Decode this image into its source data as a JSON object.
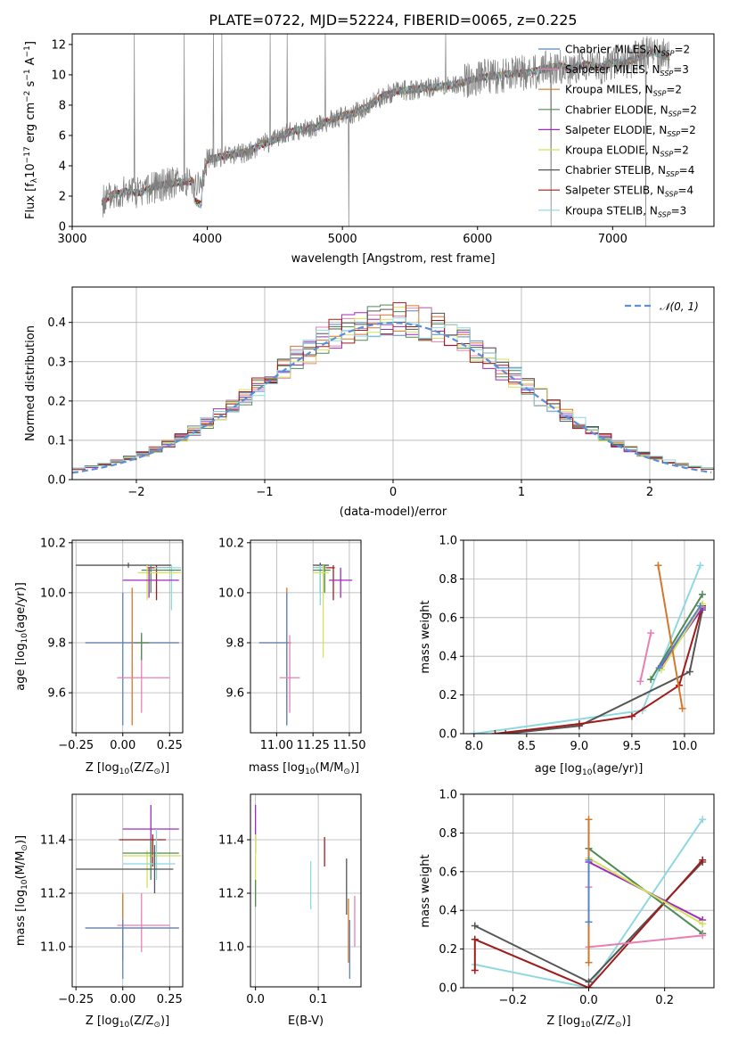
{
  "colors": {
    "chabrier_miles": "#5b84c4",
    "salpeter_miles": "#e87fb3",
    "kroupa_miles": "#d2772c",
    "chabrier_elodie": "#4f8a55",
    "salpeter_elodie": "#9b2dbd",
    "kroupa_elodie": "#d4e15a",
    "chabrier_stelib": "#555555",
    "salpeter_stelib": "#a01c1c",
    "kroupa_stelib": "#8fd8e0",
    "data": "#808080",
    "normal": "#5b8fd6"
  },
  "chart_data": [
    {
      "id": "spectrum",
      "type": "line",
      "title": "PLATE=0722, MJD=52224, FIBERID=0065, z=0.225",
      "xlabel": "wavelength [Angstrom, rest frame]",
      "ylabel_parts": [
        "Flux [f",
        "λ",
        "10",
        "−17",
        " erg cm",
        "−2",
        " s",
        "−1",
        " A",
        "−1",
        "]"
      ],
      "xlim": [
        3000,
        7750
      ],
      "ylim": [
        0,
        12.7
      ],
      "xticks": [
        3000,
        4000,
        5000,
        6000,
        7000
      ],
      "yticks": [
        0,
        2,
        4,
        6,
        8,
        10,
        12
      ],
      "data_x": [
        3220,
        3300,
        3400,
        3500,
        3600,
        3700,
        3800,
        3900,
        3950,
        4000,
        4100,
        4200,
        4300,
        4400,
        4500,
        4600,
        4700,
        4800,
        4900,
        5000,
        5100,
        5200,
        5300,
        5400,
        5500,
        5600,
        5700,
        5800,
        5900,
        6000,
        6100,
        6200,
        6300,
        6400,
        6500,
        6600,
        6700,
        6800,
        6900,
        7000,
        7100,
        7200,
        7300,
        7400
      ],
      "data_y": [
        1.6,
        2.1,
        2.3,
        2.2,
        2.6,
        2.8,
        2.9,
        3.0,
        2.6,
        4.4,
        4.6,
        4.8,
        4.9,
        5.4,
        5.7,
        6.2,
        6.4,
        6.5,
        7.0,
        7.3,
        7.5,
        8.0,
        8.6,
        8.9,
        9.0,
        9.1,
        9.2,
        9.3,
        9.5,
        9.8,
        9.9,
        10.0,
        10.1,
        10.2,
        10.4,
        10.6,
        10.4,
        10.7,
        10.5,
        10.8,
        10.8,
        11.2,
        11.5,
        11.2
      ],
      "legend": [
        {
          "prefix": "Chabrier MILES, N",
          "sub": "SSP",
          "suffix": "=2",
          "color_key": "chabrier_miles"
        },
        {
          "prefix": "Salpeter MILES, N",
          "sub": "SSP",
          "suffix": "=3",
          "color_key": "salpeter_miles"
        },
        {
          "prefix": "Kroupa MILES, N",
          "sub": "SSP",
          "suffix": "=2",
          "color_key": "kroupa_miles"
        },
        {
          "prefix": "Chabrier ELODIE, N",
          "sub": "SSP",
          "suffix": "=2",
          "color_key": "chabrier_elodie"
        },
        {
          "prefix": "Salpeter ELODIE, N",
          "sub": "SSP",
          "suffix": "=2",
          "color_key": "salpeter_elodie"
        },
        {
          "prefix": "Kroupa ELODIE, N",
          "sub": "SSP",
          "suffix": "=2",
          "color_key": "kroupa_elodie"
        },
        {
          "prefix": "Chabrier STELIB, N",
          "sub": "SSP",
          "suffix": "=4",
          "color_key": "chabrier_stelib"
        },
        {
          "prefix": "Salpeter STELIB, N",
          "sub": "SSP",
          "suffix": "=4",
          "color_key": "salpeter_stelib"
        },
        {
          "prefix": "Kroupa STELIB, N",
          "sub": "SSP",
          "suffix": "=3",
          "color_key": "kroupa_stelib"
        }
      ],
      "legend_position": "top-right"
    },
    {
      "id": "residuals",
      "type": "histogram",
      "xlabel": "(data-model)/error",
      "ylabel": "Normed distribution",
      "xlim": [
        -2.5,
        2.5
      ],
      "ylim": [
        0,
        0.49
      ],
      "xticks": [
        -2,
        -1,
        0,
        1,
        2
      ],
      "yticks": [
        0.0,
        0.1,
        0.2,
        0.3,
        0.4
      ],
      "grid": true,
      "normal_legend": "𝒩(0, 1)",
      "legend_position": "top-right"
    },
    {
      "id": "age-vs-z",
      "type": "errorbar",
      "xlabel_parts": [
        "Z [log",
        "10",
        "(Z/Z",
        "⊙",
        ")]"
      ],
      "ylabel_parts": [
        "age  [log",
        "10",
        "(age/yr)]"
      ],
      "xlim": [
        -0.27,
        0.32
      ],
      "ylim": [
        9.44,
        10.21
      ],
      "xticks": [
        -0.25,
        0.0,
        0.25
      ],
      "yticks": [
        9.6,
        9.8,
        10.0,
        10.2
      ],
      "grid": true,
      "points": [
        {
          "c": "chabrier_stelib",
          "x": 0.03,
          "y": 10.11,
          "xe": [
            -0.25,
            0.26
          ],
          "ye": [
            10.1,
            10.12
          ]
        },
        {
          "c": "salpeter_stelib",
          "x": 0.18,
          "y": 10.1,
          "xe": [
            0.13,
            0.26
          ],
          "ye": [
            9.97,
            10.11
          ]
        },
        {
          "c": "kroupa_stelib",
          "x": 0.26,
          "y": 10.1,
          "xe": [
            0.17,
            0.31
          ],
          "ye": [
            9.93,
            10.11
          ]
        },
        {
          "c": "chabrier_elodie",
          "x": 0.15,
          "y": 10.09,
          "xe": [
            0.1,
            0.31
          ],
          "ye": [
            10.0,
            10.11
          ]
        },
        {
          "c": "kroupa_elodie",
          "x": 0.13,
          "y": 10.08,
          "xe": [
            0.08,
            0.31
          ],
          "ye": [
            9.97,
            10.11
          ]
        },
        {
          "c": "salpeter_elodie",
          "x": 0.14,
          "y": 10.05,
          "xe": [
            0.0,
            0.3
          ],
          "ye": [
            9.98,
            10.1
          ]
        },
        {
          "c": "kroupa_miles",
          "x": 0.05,
          "y": 9.8,
          "xe": [
            -0.2,
            0.3
          ],
          "ye": [
            9.47,
            10.02
          ]
        },
        {
          "c": "chabrier_miles",
          "x": 0.0,
          "y": 9.8,
          "xe": [
            -0.2,
            0.3
          ],
          "ye": [
            9.47,
            10.0
          ]
        },
        {
          "c": "salpeter_miles",
          "x": 0.1,
          "y": 9.66,
          "xe": [
            -0.03,
            0.25
          ],
          "ye": [
            9.52,
            9.83
          ]
        },
        {
          "c": "chabrier_elodie",
          "x": 0.1,
          "y": 9.8,
          "xe": [
            0.06,
            0.14
          ],
          "ye": [
            9.73,
            9.84
          ]
        }
      ]
    },
    {
      "id": "age-vs-mass",
      "type": "errorbar",
      "xlabel_parts": [
        "mass [log",
        "10",
        "(M/M",
        "⊙",
        ")]"
      ],
      "ylabel_parts": [],
      "xlim": [
        10.82,
        11.58
      ],
      "ylim": [
        9.44,
        10.21
      ],
      "xticks": [
        11.0,
        11.25,
        11.5
      ],
      "yticks": [
        9.6,
        9.8,
        10.0,
        10.2
      ],
      "grid": true,
      "points": [
        {
          "c": "chabrier_stelib",
          "x": 11.3,
          "y": 10.11,
          "xe": [
            11.25,
            11.36
          ],
          "ye": [
            10.0,
            10.12
          ]
        },
        {
          "c": "salpeter_stelib",
          "x": 11.39,
          "y": 10.1,
          "xe": [
            11.25,
            11.4
          ],
          "ye": [
            9.97,
            10.11
          ]
        },
        {
          "c": "kroupa_stelib",
          "x": 11.3,
          "y": 10.1,
          "xe": [
            11.25,
            11.34
          ],
          "ye": [
            9.95,
            10.11
          ]
        },
        {
          "c": "chabrier_elodie",
          "x": 11.33,
          "y": 10.09,
          "xe": [
            11.25,
            11.37
          ],
          "ye": [
            10.0,
            10.11
          ]
        },
        {
          "c": "kroupa_elodie",
          "x": 11.32,
          "y": 10.08,
          "xe": [
            11.25,
            11.36
          ],
          "ye": [
            9.74,
            10.11
          ]
        },
        {
          "c": "salpeter_elodie",
          "x": 11.44,
          "y": 10.05,
          "xe": [
            11.36,
            11.52
          ],
          "ye": [
            9.98,
            10.1
          ]
        },
        {
          "c": "kroupa_miles",
          "x": 11.07,
          "y": 9.8,
          "xe": [
            10.88,
            11.1
          ],
          "ye": [
            9.47,
            10.02
          ]
        },
        {
          "c": "chabrier_miles",
          "x": 11.07,
          "y": 9.8,
          "xe": [
            10.88,
            11.08
          ],
          "ye": [
            9.47,
            10.0
          ]
        },
        {
          "c": "salpeter_miles",
          "x": 11.09,
          "y": 9.66,
          "xe": [
            11.02,
            11.16
          ],
          "ye": [
            9.52,
            9.83
          ]
        }
      ]
    },
    {
      "id": "weight-vs-age",
      "type": "line",
      "xlabel_parts": [
        "age  [log",
        "10",
        "(age/yr)]"
      ],
      "ylabel": "mass weight",
      "xlim": [
        7.9,
        10.28
      ],
      "ylim": [
        0,
        1.0
      ],
      "xticks": [
        8.0,
        8.5,
        9.0,
        9.5,
        10.0
      ],
      "yticks": [
        0.0,
        0.2,
        0.4,
        0.6,
        0.8,
        1.0
      ],
      "grid": true,
      "series": [
        {
          "c": "kroupa_stelib",
          "x": [
            8.0,
            9.6,
            10.15
          ],
          "y": [
            0.0,
            0.12,
            0.87
          ]
        },
        {
          "c": "chabrier_stelib",
          "x": [
            8.3,
            9.0,
            10.05,
            10.17
          ],
          "y": [
            0.0,
            0.04,
            0.32,
            0.64
          ]
        },
        {
          "c": "salpeter_stelib",
          "x": [
            8.2,
            9.0,
            9.5,
            9.95,
            10.17
          ],
          "y": [
            0.0,
            0.05,
            0.09,
            0.25,
            0.66
          ]
        },
        {
          "c": "chabrier_elodie",
          "x": [
            9.68,
            10.17
          ],
          "y": [
            0.28,
            0.72
          ]
        },
        {
          "c": "salpeter_elodie",
          "x": [
            9.78,
            10.17
          ],
          "y": [
            0.35,
            0.65
          ]
        },
        {
          "c": "kroupa_elodie",
          "x": [
            9.78,
            10.17
          ],
          "y": [
            0.33,
            0.67
          ]
        },
        {
          "c": "salpeter_miles",
          "x": [
            9.58,
            9.68
          ],
          "y": [
            0.27,
            0.52
          ]
        },
        {
          "c": "kroupa_miles",
          "x": [
            9.75,
            9.98
          ],
          "y": [
            0.87,
            0.13
          ]
        },
        {
          "c": "chabrier_miles",
          "x": [
            9.76,
            10.15
          ],
          "y": [
            0.34,
            0.66
          ]
        }
      ]
    },
    {
      "id": "mass-vs-z",
      "type": "errorbar",
      "xlabel_parts": [
        "Z [log",
        "10",
        "(Z/Z",
        "⊙",
        ")]"
      ],
      "ylabel_parts": [
        "mass [log",
        "10",
        "(M/M",
        "⊙",
        ")]"
      ],
      "xlim": [
        -0.27,
        0.32
      ],
      "ylim": [
        10.85,
        11.57
      ],
      "xticks": [
        -0.25,
        0.0,
        0.25
      ],
      "yticks": [
        11.0,
        11.2,
        11.4
      ],
      "grid": true,
      "points": [
        {
          "c": "salpeter_elodie",
          "x": 0.15,
          "y": 11.44,
          "xe": [
            0.0,
            0.3
          ],
          "ye": [
            11.35,
            11.53
          ]
        },
        {
          "c": "salpeter_stelib",
          "x": 0.16,
          "y": 11.4,
          "xe": [
            -0.02,
            0.23
          ],
          "ye": [
            11.3,
            11.42
          ]
        },
        {
          "c": "kroupa_elodie",
          "x": 0.13,
          "y": 11.34,
          "xe": [
            0.0,
            0.31
          ],
          "ye": [
            11.22,
            11.36
          ]
        },
        {
          "c": "chabrier_elodie",
          "x": 0.15,
          "y": 11.35,
          "xe": [
            0.0,
            0.3
          ],
          "ye": [
            11.25,
            11.4
          ]
        },
        {
          "c": "kroupa_stelib",
          "x": 0.18,
          "y": 11.31,
          "xe": [
            0.0,
            0.28
          ],
          "ye": [
            11.25,
            11.44
          ]
        },
        {
          "c": "chabrier_stelib",
          "x": 0.17,
          "y": 11.29,
          "xe": [
            -0.25,
            0.27
          ],
          "ye": [
            11.2,
            11.38
          ]
        },
        {
          "c": "salpeter_miles",
          "x": 0.1,
          "y": 11.08,
          "xe": [
            -0.03,
            0.25
          ],
          "ye": [
            10.98,
            11.2
          ]
        },
        {
          "c": "kroupa_miles",
          "x": 0.0,
          "y": 11.07,
          "xe": [
            -0.2,
            0.3
          ],
          "ye": [
            10.95,
            11.2
          ]
        },
        {
          "c": "chabrier_miles",
          "x": 0.0,
          "y": 11.07,
          "xe": [
            -0.2,
            0.3
          ],
          "ye": [
            10.88,
            11.1
          ]
        }
      ]
    },
    {
      "id": "mass-vs-ebv",
      "type": "errorbar",
      "xlabel": "E(B-V)",
      "ylabel_parts": [],
      "xlim": [
        -0.008,
        0.168
      ],
      "ylim": [
        10.85,
        11.57
      ],
      "xticks": [
        0.0,
        0.1
      ],
      "yticks": [
        11.0,
        11.2,
        11.4
      ],
      "grid": true,
      "points": [
        {
          "c": "salpeter_elodie",
          "x": 0.0,
          "y": 11.44,
          "xe": [
            0.0,
            0.0
          ],
          "ye": [
            11.35,
            11.53
          ]
        },
        {
          "c": "kroupa_elodie",
          "x": 0.0,
          "y": 11.3,
          "xe": [
            0.0,
            0.0
          ],
          "ye": [
            11.15,
            11.42
          ]
        },
        {
          "c": "chabrier_elodie",
          "x": 0.0,
          "y": 11.2,
          "xe": [
            0.0,
            0.0
          ],
          "ye": [
            11.15,
            11.25
          ]
        },
        {
          "c": "kroupa_stelib",
          "x": 0.088,
          "y": 11.22,
          "xe": [
            0.088,
            0.088
          ],
          "ye": [
            11.14,
            11.32
          ]
        },
        {
          "c": "salpeter_stelib",
          "x": 0.11,
          "y": 11.35,
          "xe": [
            0.11,
            0.11
          ],
          "ye": [
            11.3,
            11.41
          ]
        },
        {
          "c": "chabrier_stelib",
          "x": 0.145,
          "y": 11.2,
          "xe": [
            0.145,
            0.145
          ],
          "ye": [
            11.12,
            11.33
          ]
        },
        {
          "c": "kroupa_miles",
          "x": 0.148,
          "y": 11.05,
          "xe": [
            0.148,
            0.148
          ],
          "ye": [
            10.94,
            11.18
          ]
        },
        {
          "c": "chabrier_miles",
          "x": 0.15,
          "y": 10.98,
          "xe": [
            0.15,
            0.15
          ],
          "ye": [
            10.88,
            11.1
          ]
        },
        {
          "c": "salpeter_miles",
          "x": 0.158,
          "y": 11.1,
          "xe": [
            0.158,
            0.158
          ],
          "ye": [
            11.0,
            11.19
          ]
        }
      ]
    },
    {
      "id": "weight-vs-z",
      "type": "line",
      "xlabel_parts": [
        "Z [log",
        "10",
        "(Z/Z",
        "⊙",
        ")]"
      ],
      "ylabel": "mass weight",
      "xlim": [
        -0.33,
        0.33
      ],
      "ylim": [
        0,
        1.0
      ],
      "xticks": [
        -0.2,
        0.0,
        0.2
      ],
      "yticks": [
        0.0,
        0.2,
        0.4,
        0.6,
        0.8,
        1.0
      ],
      "grid": true,
      "series": [
        {
          "c": "kroupa_stelib",
          "x": [
            -0.3,
            0.0,
            0.3
          ],
          "y": [
            0.12,
            0.0,
            0.87
          ]
        },
        {
          "c": "chabrier_stelib",
          "x": [
            -0.3,
            0.0,
            0.3
          ],
          "y": [
            0.32,
            0.03,
            0.65
          ]
        },
        {
          "c": "salpeter_stelib",
          "x": [
            -0.3,
            -0.3,
            0.0,
            0.3
          ],
          "y": [
            0.09,
            0.25,
            0.0,
            0.66
          ]
        },
        {
          "c": "chabrier_elodie",
          "x": [
            0.0,
            0.3
          ],
          "y": [
            0.72,
            0.28
          ]
        },
        {
          "c": "salpeter_elodie",
          "x": [
            0.0,
            0.3
          ],
          "y": [
            0.65,
            0.35
          ]
        },
        {
          "c": "kroupa_elodie",
          "x": [
            0.0,
            0.3
          ],
          "y": [
            0.67,
            0.33
          ]
        },
        {
          "c": "salpeter_miles",
          "x": [
            0.0,
            0.0,
            0.3
          ],
          "y": [
            0.52,
            0.21,
            0.27
          ]
        },
        {
          "c": "kroupa_miles",
          "x": [
            0.0,
            0.0
          ],
          "y": [
            0.87,
            0.13
          ]
        },
        {
          "c": "chabrier_miles",
          "x": [
            0.0,
            0.0
          ],
          "y": [
            0.34,
            0.66
          ]
        }
      ]
    }
  ]
}
